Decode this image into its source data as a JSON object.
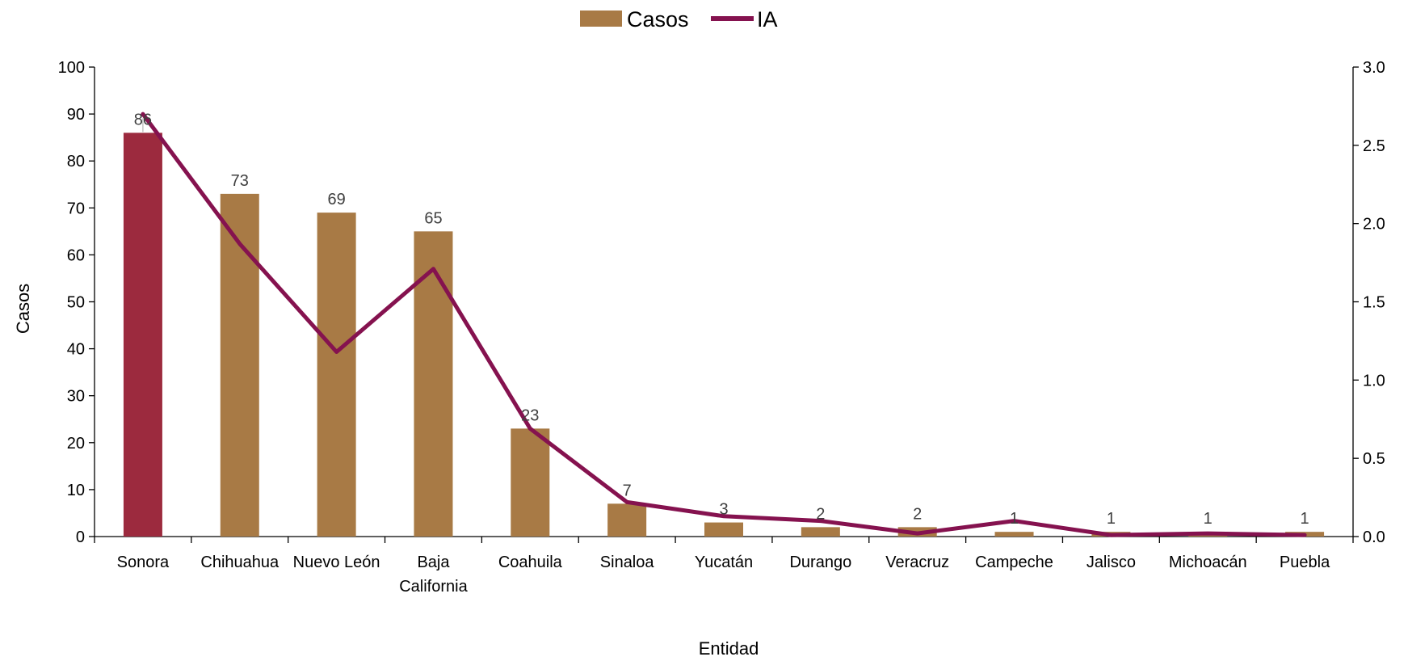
{
  "chart_data": {
    "type": "bar",
    "categories": [
      "Sonora",
      "Chihuahua",
      "Nuevo León",
      "Baja California",
      "Coahuila",
      "Sinaloa",
      "Yucatán",
      "Durango",
      "Veracruz",
      "Campeche",
      "Jalisco",
      "Michoacán",
      "Puebla"
    ],
    "category_lines": [
      [
        "Sonora"
      ],
      [
        "Chihuahua"
      ],
      [
        "Nuevo León"
      ],
      [
        "Baja",
        "California"
      ],
      [
        "Coahuila"
      ],
      [
        "Sinaloa"
      ],
      [
        "Yucatán"
      ],
      [
        "Durango"
      ],
      [
        "Veracruz"
      ],
      [
        "Campeche"
      ],
      [
        "Jalisco"
      ],
      [
        "Michoacán"
      ],
      [
        "Puebla"
      ]
    ],
    "series": [
      {
        "name": "Casos",
        "kind": "bar",
        "axis": "left",
        "color": "#a87a45",
        "highlight_color": "#9c2a3e",
        "highlight_index": 0,
        "values": [
          86,
          73,
          69,
          65,
          23,
          7,
          3,
          2,
          2,
          1,
          1,
          1,
          1
        ],
        "data_labels": [
          "86",
          "73",
          "69",
          "65",
          "23",
          "7",
          "3",
          "2",
          "2",
          "1",
          "1",
          "1",
          "1"
        ]
      },
      {
        "name": "IA",
        "kind": "line",
        "axis": "right",
        "color": "#85124f",
        "values": [
          2.7,
          1.87,
          1.18,
          1.71,
          0.69,
          0.22,
          0.13,
          0.1,
          0.02,
          0.1,
          0.01,
          0.02,
          0.01
        ]
      }
    ],
    "xlabel": "Entidad",
    "ylabel": "Casos",
    "y2label": "",
    "ylim": [
      0,
      100
    ],
    "y2lim": [
      0,
      3.0
    ],
    "yticks": [
      0,
      10,
      20,
      30,
      40,
      50,
      60,
      70,
      80,
      90,
      100
    ],
    "y2ticks": [
      "0.0",
      "0.5",
      "1.0",
      "1.5",
      "2.0",
      "2.5",
      "3.0"
    ],
    "legend_position": "top-center",
    "grid": false
  }
}
